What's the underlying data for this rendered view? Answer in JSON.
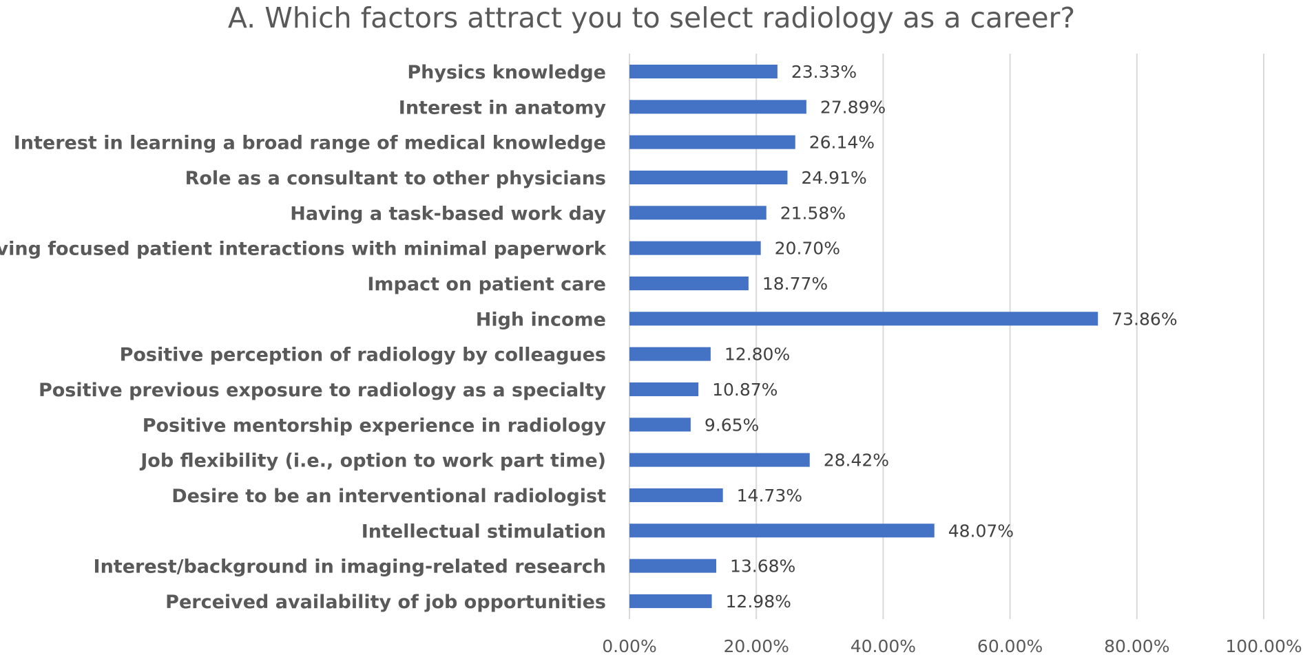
{
  "chart_data": {
    "type": "bar",
    "orientation": "horizontal",
    "title": "A. Which factors attract you to select radiology as a career?",
    "xlabel": "",
    "ylabel": "",
    "categories": [
      "Physics knowledge",
      "Interest in anatomy",
      "Interest in learning a broad range of medical knowledge",
      "Role as a consultant to other physicians",
      "Having a task-based work day",
      "Having focused patient interactions with minimal paperwork",
      "Impact on patient care",
      "High income",
      "Positive perception of radiology by colleagues",
      "Positive previous exposure to radiology as a specialty",
      "Positive mentorship experience in radiology",
      "Job flexibility (i.e., option to work part time)",
      "Desire to be an interventional radiologist",
      "Intellectual stimulation",
      "Interest/background in imaging-related research",
      "Perceived availability of job opportunities"
    ],
    "values": [
      23.33,
      27.89,
      26.14,
      24.91,
      21.58,
      20.7,
      18.77,
      73.86,
      12.8,
      10.87,
      9.65,
      28.42,
      14.73,
      48.07,
      13.68,
      12.98
    ],
    "value_labels": [
      "23.33%",
      "27.89%",
      "26.14%",
      "24.91%",
      "21.58%",
      "20.70%",
      "18.77%",
      "73.86%",
      "12.80%",
      "10.87%",
      "9.65%",
      "28.42%",
      "14.73%",
      "48.07%",
      "13.68%",
      "12.98%"
    ],
    "xlim": [
      0,
      100
    ],
    "xticks": [
      0,
      20,
      40,
      60,
      80,
      100
    ],
    "xtick_labels": [
      "0.00%",
      "20.00%",
      "40.00%",
      "60.00%",
      "80.00%",
      "100.00%"
    ],
    "grid": true,
    "legend": "none",
    "bar_color": "#4472c4",
    "grid_color": "#d9d9d9",
    "text_color": "#595959"
  }
}
